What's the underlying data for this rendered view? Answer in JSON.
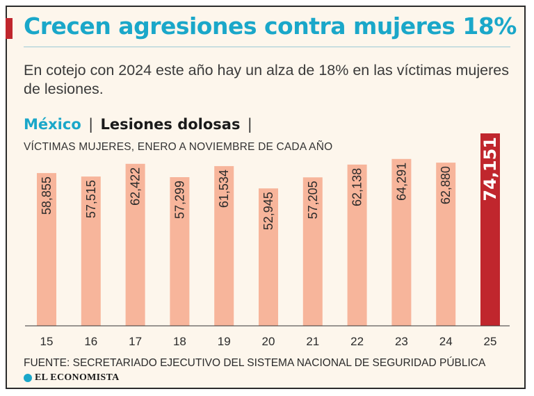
{
  "header": {
    "title": "Crecen agresiones contra mujeres 18%",
    "subtitle": "En cotejo con 2024 este año hay un alza de 18% en las víctimas mujeres de lesiones."
  },
  "section": {
    "region": "México",
    "separator": "|",
    "topic": "Lesiones dolosas",
    "trailing_separator": "|"
  },
  "footer": {
    "source": "FUENTE: SECRETARIADO EJECUTIVO DEL SISTEMA NACIONAL DE SEGURIDAD PÚBLICA",
    "brand": "EL ECONOMISTA"
  },
  "colors": {
    "bar": "#f7b59b",
    "highlight": "#c0262d",
    "title": "#1aa7c9"
  },
  "chart_data": {
    "type": "bar",
    "title": "Crecen agresiones contra mujeres 18%",
    "series_label": "VÍCTIMAS MUJERES, ENERO A NOVIEMBRE DE CADA AÑO",
    "xlabel": "",
    "ylabel": "",
    "categories": [
      "15",
      "16",
      "17",
      "18",
      "19",
      "20",
      "21",
      "22",
      "23",
      "24",
      "25"
    ],
    "values": [
      58855,
      57515,
      62422,
      57299,
      61534,
      52945,
      57205,
      62138,
      64291,
      62880,
      74151
    ],
    "value_labels": [
      "58,855",
      "57,515",
      "62,422",
      "57,299",
      "61,534",
      "52,945",
      "57,205",
      "62,138",
      "64,291",
      "62,880",
      "74,151"
    ],
    "highlight_index": 10,
    "ylim": [
      0,
      74151
    ],
    "grid": false
  }
}
